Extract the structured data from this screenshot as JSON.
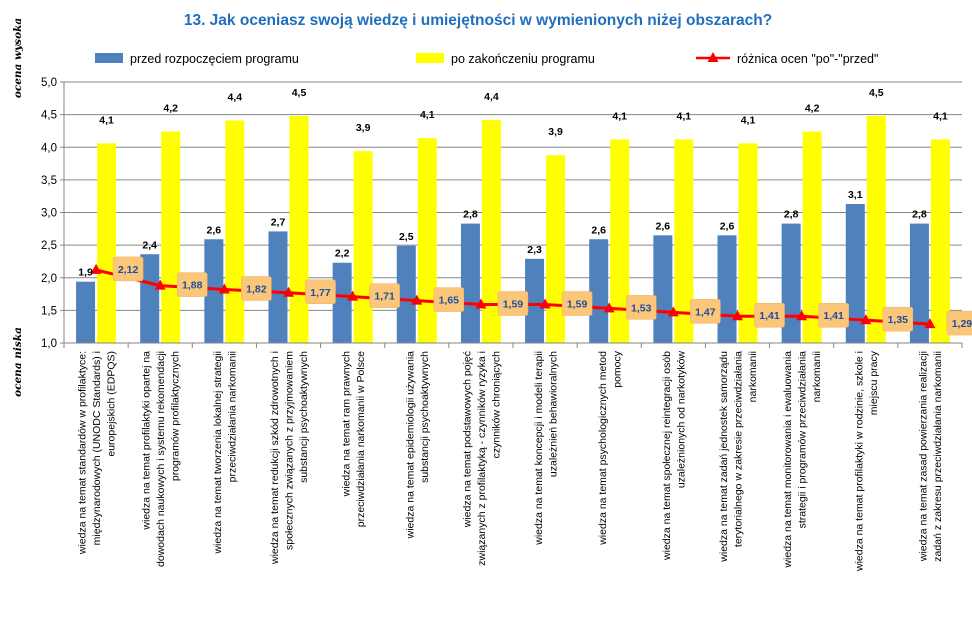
{
  "chart_data": {
    "type": "bar",
    "title": "13. Jak oceniasz swoją wiedzę i umiejętności w wymienionych niżej obszarach?",
    "ylabel_top": "ocena wysoka",
    "ylabel_bottom": "ocena niska",
    "ylim": [
      1.0,
      5.0
    ],
    "yticks": [
      "1,0",
      "1,5",
      "2,0",
      "2,5",
      "3,0",
      "3,5",
      "4,0",
      "4,5",
      "5,0"
    ],
    "grid": true,
    "legend_position": "top",
    "categories": [
      [
        "wiedza na temat standardów w profilaktyce:",
        "międzynarodowych (UNODC Standards) i",
        "europejskich (EDPQS)"
      ],
      [
        "wiedza na temat profilaktyki opartej na",
        "dowodach naukowych i systemu rekomendacji",
        "programów profilaktycznych"
      ],
      [
        "wiedza na temat tworzenia lokalnej strategii",
        "przeciwdziałania narkomanii"
      ],
      [
        "wiedza na temat redukcji szkód zdrowotnych i",
        "społecznych związanych z przyjmowaniem",
        "substancji psychoaktywnych"
      ],
      [
        "wiedza na temat ram prawnych",
        "przeciwdziałania narkomanii w Polsce"
      ],
      [
        "wiedza na temat epidemiologii używania",
        "substancji psychoaktywnych"
      ],
      [
        "wiedza na temat podstawowych pojęć",
        "związanych z profilaktyką - czynników ryzyka i",
        "czynników chroniących"
      ],
      [
        "wiedza na temat koncepcji i modeli terapii",
        "uzależnień behawioralnych"
      ],
      [
        "wiedza na temat psychologicznych metod",
        "pomocy"
      ],
      [
        "wiedza na temat społecznej reintegracji osób",
        "uzależnionych od narkotyków"
      ],
      [
        "wiedza na temat zadań jednostek samorządu",
        "terytorialnego w zakresie przeciwdziałania",
        "narkomanii"
      ],
      [
        "wiedza na temat monitorowania i ewaluowania",
        "strategii i programów przeciwdziałania",
        "narkomanii"
      ],
      [
        "wiedza na temat profilaktyki w rodzinie, szkole i",
        "miejscu pracy"
      ],
      [
        "wiedza na temat zasad powierzania realizacji",
        "zadań z zakresu przeciwdziałania narkomanii"
      ]
    ],
    "series": [
      {
        "name": "przed rozpoczęciem programu",
        "color": "#4f81bd",
        "values": [
          1.94,
          2.36,
          2.59,
          2.71,
          2.23,
          2.49,
          2.83,
          2.29,
          2.59,
          2.65,
          2.65,
          2.83,
          3.13,
          2.83
        ],
        "labels": [
          "1,9",
          "2,4",
          "2,6",
          "2,7",
          "2,2",
          "2,5",
          "2,8",
          "2,3",
          "2,6",
          "2,6",
          "2,6",
          "2,8",
          "3,1",
          "2,8"
        ]
      },
      {
        "name": "po zakończeniu programu",
        "color": "#ffff00",
        "values": [
          4.06,
          4.24,
          4.41,
          4.48,
          3.94,
          4.14,
          4.42,
          3.88,
          4.12,
          4.12,
          4.06,
          4.24,
          4.48,
          4.12
        ],
        "labels": [
          "4,1",
          "4,2",
          "4,4",
          "4,5",
          "3,9",
          "4,1",
          "4,4",
          "3,9",
          "4,1",
          "4,1",
          "4,1",
          "4,2",
          "4,5",
          "4,1"
        ]
      },
      {
        "name": "różnica ocen \"po\"-\"przed\"",
        "color": "#ff0000",
        "values": [
          2.12,
          1.88,
          1.82,
          1.77,
          1.71,
          1.65,
          1.59,
          1.59,
          1.53,
          1.47,
          1.41,
          1.41,
          1.35,
          1.29
        ],
        "labels": [
          "2,12",
          "1,88",
          "1,82",
          "1,77",
          "1,71",
          "1,65",
          "1,59",
          "1,59",
          "1,53",
          "1,47",
          "1,41",
          "1,41",
          "1,35",
          "1,29"
        ]
      }
    ]
  }
}
